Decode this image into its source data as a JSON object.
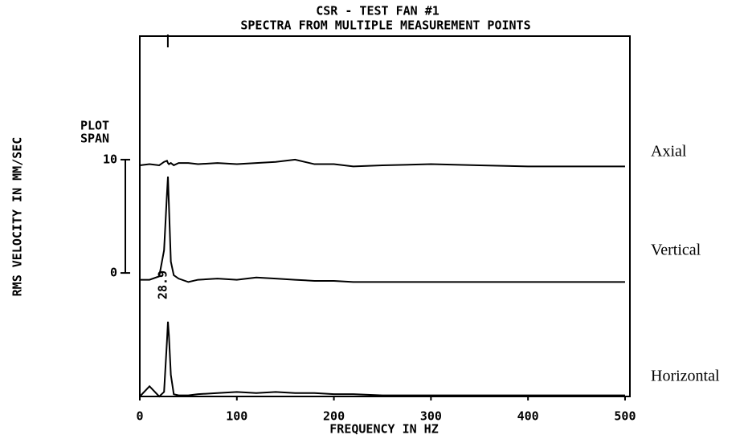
{
  "chart_data": {
    "type": "line",
    "title": "CSR - TEST FAN #1",
    "subtitle": "SPECTRA FROM MULTIPLE MEASUREMENT POINTS",
    "x_label": "FREQUENCY IN HZ",
    "y_label": "RMS VELOCITY IN MM/SEC",
    "span_label": [
      "PLOT",
      "SPAN"
    ],
    "x": [
      0,
      10,
      20,
      25,
      28,
      29,
      30,
      32,
      35,
      40,
      50,
      60,
      80,
      100,
      120,
      140,
      160,
      180,
      200,
      220,
      250,
      300,
      350,
      400,
      450,
      500
    ],
    "series": [
      {
        "name": "Axial",
        "color": "#000000",
        "values": [
          9.5,
          9.6,
          9.5,
          9.8,
          9.9,
          9.7,
          9.6,
          9.7,
          9.5,
          9.7,
          9.7,
          9.6,
          9.7,
          9.6,
          9.7,
          9.8,
          10.0,
          9.6,
          9.6,
          9.4,
          9.5,
          9.6,
          9.5,
          9.4,
          9.4,
          9.4
        ]
      },
      {
        "name": "Vertical",
        "color": "#000000",
        "values": [
          -0.6,
          -0.6,
          -0.3,
          2,
          7,
          8.5,
          6,
          1,
          -0.2,
          -0.5,
          -0.8,
          -0.6,
          -0.5,
          -0.6,
          -0.4,
          -0.5,
          -0.6,
          -0.7,
          -0.7,
          -0.8,
          -0.8,
          -0.8,
          -0.8,
          -0.8,
          -0.8,
          -0.8
        ]
      },
      {
        "name": "Horizontal",
        "color": "#000000",
        "values": [
          -10.9,
          -10.0,
          -10.9,
          -10.5,
          -6,
          -4.3,
          -5.5,
          -9,
          -10.7,
          -10.8,
          -10.8,
          -10.7,
          -10.6,
          -10.5,
          -10.6,
          -10.5,
          -10.6,
          -10.6,
          -10.7,
          -10.7,
          -10.8,
          -10.8,
          -10.8,
          -10.8,
          -10.8,
          -10.8
        ]
      }
    ],
    "annotation": {
      "value": 28.9,
      "label": "28.9"
    },
    "xlim": [
      0,
      505
    ],
    "xticks": [
      0,
      100,
      200,
      300,
      400,
      500
    ],
    "ylim": [
      -10.9,
      20.9
    ],
    "yticks": [
      0,
      10
    ],
    "grid": false
  }
}
